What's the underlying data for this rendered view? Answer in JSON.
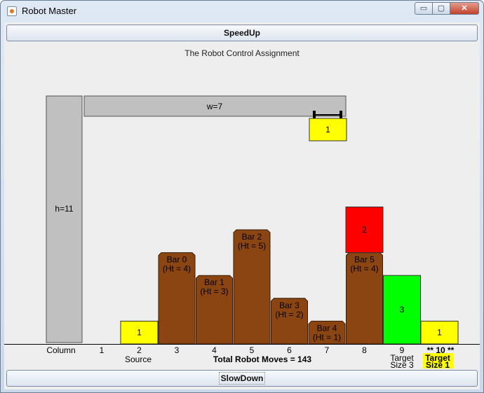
{
  "window": {
    "title": "Robot Master",
    "min_symbol": "▭",
    "max_symbol": "▢",
    "close_symbol": "✕",
    "icon": "java-cup-icon"
  },
  "buttons": {
    "speedup": "SpeedUp",
    "slowdown": "SlowDown"
  },
  "assignment_title": "The Robot Control Assignment",
  "robot": {
    "arm_label": "w=7",
    "column_label": "h=11",
    "held_block_value": "1"
  },
  "bars": [
    {
      "label": "Bar 0",
      "height_label": "(Ht = 4)",
      "column": 3,
      "height": 4
    },
    {
      "label": "Bar 1",
      "height_label": "(Ht = 3)",
      "column": 4,
      "height": 3
    },
    {
      "label": "Bar 2",
      "height_label": "(Ht = 5)",
      "column": 5,
      "height": 5
    },
    {
      "label": "Bar 3",
      "height_label": "(Ht = 2)",
      "column": 6,
      "height": 2
    },
    {
      "label": "Bar 4",
      "height_label": "(Ht = 1)",
      "column": 7,
      "height": 1
    },
    {
      "label": "Bar 5",
      "height_label": "(Ht = 4)",
      "column": 8,
      "height": 4
    }
  ],
  "blocks": [
    {
      "value": "1",
      "column": 2,
      "level": 0,
      "size": 1,
      "color": "#ffff00"
    },
    {
      "value": "2",
      "column": 8,
      "level": 4,
      "size": 2,
      "color": "#ff0000"
    },
    {
      "value": "3",
      "column": 9,
      "level": 0,
      "size": 3,
      "color": "#00ff00"
    },
    {
      "value": "1",
      "column": 10,
      "level": 0,
      "size": 1,
      "color": "#ffff00"
    }
  ],
  "axis": {
    "column_caption": "Column",
    "numbers": [
      "1",
      "2",
      "3",
      "4",
      "5",
      "6",
      "7",
      "8",
      "9"
    ],
    "highlight_number": "** 10 **",
    "source_label": "Source",
    "target3_line1": "Target",
    "target3_line2": "Size 3",
    "target1_line1": "Target",
    "target1_line2": "Size 1",
    "moves_text": "Total Robot Moves = 143"
  },
  "colors": {
    "bar": "#8b4513",
    "block_small": "#ffff00",
    "block_medium": "#ff0000",
    "block_large": "#00ff00",
    "robot": "#c0c0c0",
    "target_highlight": "#ffff00"
  }
}
